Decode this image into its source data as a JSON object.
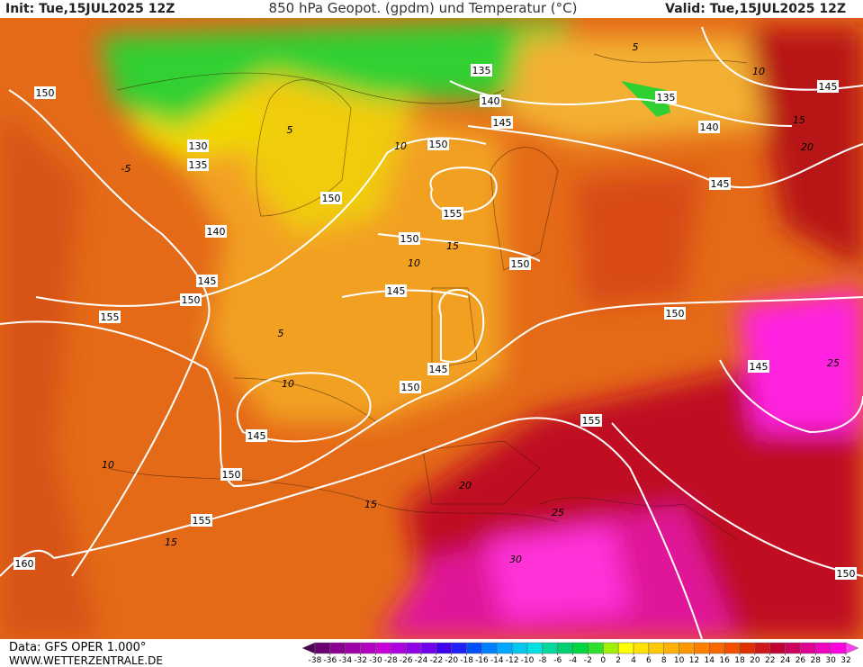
{
  "header": {
    "init": "Init: Tue,15JUL2025 12Z",
    "title": "850 hPa Geopot. (gpdm) und Temperatur (°C)",
    "valid": "Valid: Tue,15JUL2025 12Z"
  },
  "footer": {
    "source": "Data: GFS OPER 1.000°",
    "website": "WWW.WETTERZENTRALE.DE"
  },
  "map": {
    "geopotential_labels": [
      "150",
      "130",
      "135",
      "140",
      "145",
      "150",
      "155",
      "150",
      "155",
      "150",
      "150",
      "145",
      "145",
      "150",
      "145",
      "150",
      "155",
      "160",
      "155",
      "150",
      "145",
      "150",
      "135",
      "140",
      "145",
      "150",
      "135",
      "140",
      "145",
      "145"
    ],
    "temperature_labels": [
      "10",
      "15",
      "10",
      "5",
      "10",
      "10",
      "15",
      "15",
      "20",
      "25",
      "30",
      "25",
      "20",
      "15",
      "10",
      "5",
      "-5",
      "5"
    ]
  },
  "colorbar": {
    "ticks": [
      -38,
      -36,
      -34,
      -32,
      -30,
      -28,
      -26,
      -24,
      -22,
      -20,
      -18,
      -16,
      -14,
      -12,
      -10,
      -8,
      -6,
      -4,
      -2,
      0,
      2,
      4,
      6,
      8,
      10,
      12,
      14,
      16,
      18,
      20,
      22,
      24,
      26,
      28,
      30,
      32
    ],
    "colors": [
      "#4b0050",
      "#6a0070",
      "#8a0090",
      "#a000a8",
      "#b400c0",
      "#c800d8",
      "#b000e0",
      "#9000e8",
      "#7000f0",
      "#4000f0",
      "#2020ff",
      "#0050ff",
      "#0080ff",
      "#00a8ff",
      "#00c8f0",
      "#00e0e0",
      "#00d8a0",
      "#00d070",
      "#00d840",
      "#30e030",
      "#a0f000",
      "#ffff00",
      "#ffe000",
      "#ffc800",
      "#ffb000",
      "#ff9800",
      "#ff8000",
      "#f86800",
      "#f05000",
      "#e03000",
      "#d01818",
      "#c00030",
      "#d00060",
      "#e00090",
      "#f000c0",
      "#ff00e0",
      "#ff40f0"
    ]
  }
}
